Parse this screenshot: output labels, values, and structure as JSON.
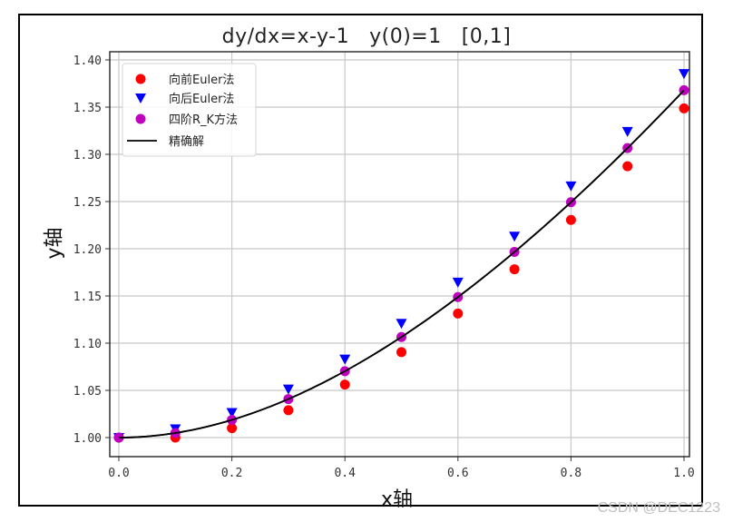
{
  "title_parts": [
    "dy/dx=x-y-1",
    "y(0)=1",
    "[0,1]"
  ],
  "xlabel": "x轴",
  "ylabel": "y轴",
  "watermark": "CSDN @DEC1223",
  "colors": {
    "forward_euler": "#ff0000",
    "backward_euler": "#0000ff",
    "rk4": "#bf00bf",
    "exact": "#000000",
    "grid": "#c8c8c8"
  },
  "chart_data": {
    "type": "scatter",
    "title": "dy/dx=x-y-1    y(0)=1    [0,1]",
    "xlabel": "x轴",
    "ylabel": "y轴",
    "xlim": [
      -0.01,
      1.01
    ],
    "ylim": [
      0.98,
      1.4
    ],
    "xticks": [
      "0.0",
      "0.2",
      "0.4",
      "0.6",
      "0.8",
      "1.0"
    ],
    "yticks": [
      "1.00",
      "1.05",
      "1.10",
      "1.15",
      "1.20",
      "1.25",
      "1.30",
      "1.35",
      "1.40"
    ],
    "grid": true,
    "legend_position": "upper left",
    "x": [
      0.0,
      0.1,
      0.2,
      0.3,
      0.4,
      0.5,
      0.6,
      0.7,
      0.8,
      0.9,
      1.0
    ],
    "series": [
      {
        "name": "向前Euler法",
        "marker": "circle",
        "color": "#ff0000",
        "values": [
          1.0,
          1.0,
          1.01,
          1.029,
          1.0561,
          1.0905,
          1.1314,
          1.1783,
          1.2305,
          1.2874,
          1.3487
        ]
      },
      {
        "name": "向后Euler法",
        "marker": "triangle-down",
        "color": "#0000ff",
        "values": [
          1.0,
          1.0091,
          1.0264,
          1.0513,
          1.083,
          1.1209,
          1.1645,
          1.2132,
          1.2665,
          1.3241,
          1.3855
        ]
      },
      {
        "name": "四阶R_K方法",
        "marker": "circle",
        "color": "#bf00bf",
        "values": [
          1.0,
          1.0048,
          1.0187,
          1.0408,
          1.0703,
          1.1065,
          1.1488,
          1.1966,
          1.2493,
          1.3066,
          1.3679
        ]
      },
      {
        "name": "精确解",
        "marker": "line",
        "color": "#000000",
        "values": [
          1.0,
          1.0048,
          1.0187,
          1.0408,
          1.0703,
          1.1065,
          1.1488,
          1.1966,
          1.2493,
          1.3066,
          1.3679
        ]
      }
    ]
  }
}
